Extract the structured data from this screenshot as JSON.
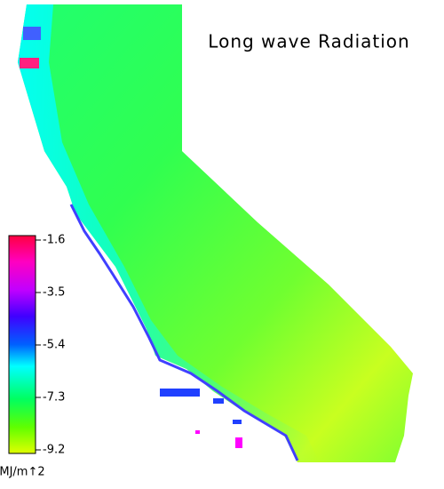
{
  "title": "Long wave Radiation",
  "colorbar": {
    "ticks": [
      -1.6,
      -3.5,
      -5.4,
      -7.3,
      -9.2
    ],
    "unit": "MJ/m↑2"
  }
}
